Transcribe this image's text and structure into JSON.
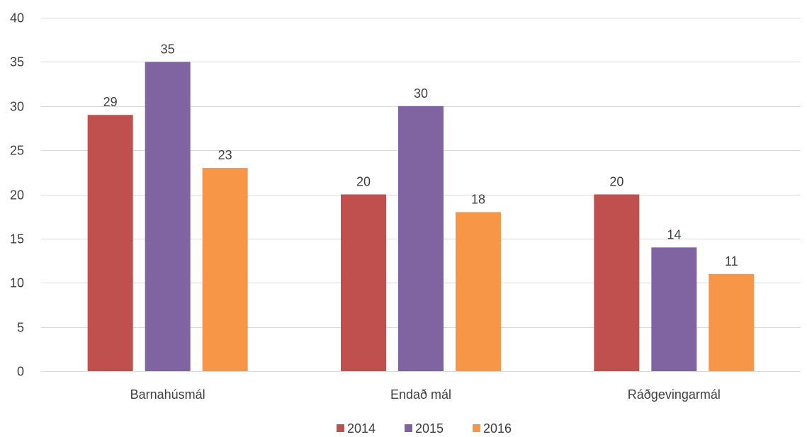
{
  "chart_data": {
    "type": "bar",
    "categories": [
      "Barnahúsmál",
      "Endað mál",
      "Ráðgevingarmál"
    ],
    "series": [
      {
        "name": "2014",
        "values": [
          29,
          20,
          20
        ],
        "color": "#C0504D"
      },
      {
        "name": "2015",
        "values": [
          35,
          30,
          14
        ],
        "color": "#8064A2"
      },
      {
        "name": "2016",
        "values": [
          23,
          18,
          11
        ],
        "color": "#F79646"
      }
    ],
    "ylim": [
      0,
      40
    ],
    "yticks": [
      0,
      5,
      10,
      15,
      20,
      25,
      30,
      35,
      40
    ],
    "grid": true,
    "legend": "bottom-center",
    "data_labels": true,
    "gridline_color": "#D9D9D9",
    "text_color": "#404040"
  }
}
